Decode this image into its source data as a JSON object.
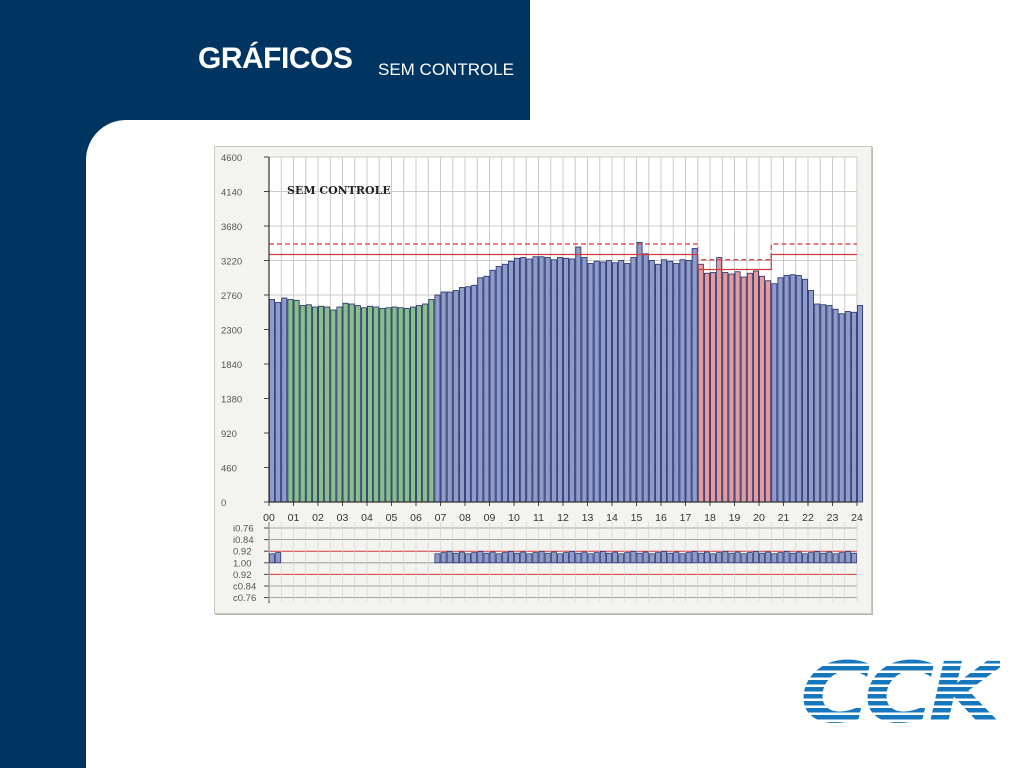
{
  "page": {
    "title": "GRÁFICOS",
    "subtitle": "SEM CONTROLE"
  },
  "logo": {
    "text": "CCK",
    "color": "#1777bd"
  },
  "colors": {
    "background": "#003461",
    "bar_blue": "#8f9cc8",
    "bar_green": "#88c088",
    "bar_red": "#e79a9a",
    "bar_outline": "#202a6e",
    "limit_red": "#d43a3a"
  },
  "chart_data": {
    "type": "bar",
    "title": "SEM CONTROLE",
    "xlabel": "",
    "ylabel": "",
    "xlim": [
      0,
      24
    ],
    "ylim": [
      0,
      4600
    ],
    "grid": true,
    "yticks": [
      0,
      460,
      920,
      1380,
      1840,
      2300,
      2760,
      3220,
      3680,
      4140,
      4600
    ],
    "ytick_labels": [
      "0",
      "460",
      "920",
      "1380",
      "1840",
      "2300",
      "2760",
      "3220",
      "3680",
      "4140",
      "4600"
    ],
    "xtick_labels": [
      "00",
      "01",
      "02",
      "03",
      "04",
      "05",
      "06",
      "07",
      "08",
      "09",
      "10",
      "11",
      "12",
      "13",
      "14",
      "15",
      "16",
      "17",
      "18",
      "19",
      "20",
      "21",
      "22",
      "23",
      "24"
    ],
    "interval_hours": 0.25,
    "values": [
      2700,
      2660,
      2720,
      2700,
      2690,
      2620,
      2630,
      2600,
      2610,
      2600,
      2560,
      2600,
      2650,
      2640,
      2620,
      2590,
      2610,
      2600,
      2580,
      2590,
      2600,
      2590,
      2580,
      2600,
      2620,
      2640,
      2700,
      2760,
      2800,
      2800,
      2820,
      2860,
      2870,
      2890,
      2990,
      3010,
      3090,
      3140,
      3170,
      3210,
      3250,
      3260,
      3240,
      3270,
      3270,
      3260,
      3230,
      3260,
      3250,
      3240,
      3400,
      3260,
      3180,
      3210,
      3200,
      3220,
      3190,
      3220,
      3180,
      3260,
      3460,
      3310,
      3220,
      3170,
      3230,
      3210,
      3180,
      3230,
      3220,
      3380,
      3170,
      3050,
      3060,
      3260,
      3060,
      3040,
      3070,
      3000,
      3050,
      3080,
      3010,
      2950,
      2910,
      2990,
      3020,
      3030,
      3020,
      2970,
      2820,
      2640,
      2630,
      2620,
      2570,
      2510,
      2540,
      2530,
      2620
    ],
    "segments": [
      {
        "name": "tarifa-verde",
        "from_hour": 0.75,
        "to_hour": 6.75,
        "color": "#88c088"
      },
      {
        "name": "tarifa-vermelha",
        "from_hour": 17.5,
        "to_hour": 20.5,
        "color": "#e79a9a"
      }
    ],
    "limit_lines": [
      {
        "style": "solid",
        "color": "#d43a3a",
        "points": [
          [
            0,
            3300
          ],
          [
            17.5,
            3300
          ],
          [
            17.5,
            3100
          ],
          [
            20.5,
            3100
          ],
          [
            20.5,
            3300
          ],
          [
            24,
            3300
          ]
        ]
      },
      {
        "style": "dashed",
        "color": "#d43a3a",
        "points": [
          [
            0,
            3440
          ],
          [
            17.5,
            3440
          ],
          [
            17.5,
            3230
          ],
          [
            20.5,
            3230
          ],
          [
            20.5,
            3440
          ],
          [
            24,
            3440
          ]
        ]
      }
    ],
    "pf_panel": {
      "ytick_labels": [
        "i0.76",
        "i0.84",
        "0.92",
        "1.00",
        "0.92",
        "c0.84",
        "c0.76"
      ],
      "reference_lines": [
        "0.92",
        "0.92"
      ],
      "segments": [
        {
          "from_hour": 0,
          "to_hour": 0.5
        },
        {
          "from_hour": 6.75,
          "to_hour": 24
        }
      ]
    }
  }
}
